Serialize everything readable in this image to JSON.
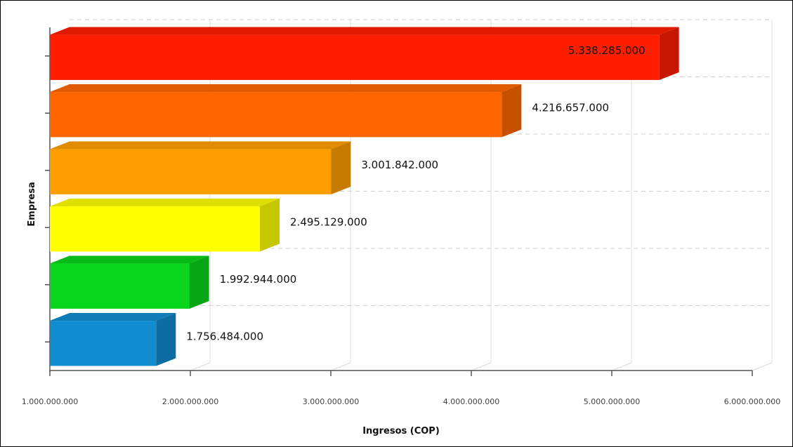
{
  "chart_data": {
    "type": "bar",
    "orientation": "horizontal",
    "style": "3d",
    "xlabel": "Ingresos (COP)",
    "ylabel": "Empresa",
    "xlim": [
      1000000000,
      6000000000
    ],
    "x_tick_labels": [
      "1.000.000.000",
      "2.000.000.000",
      "3.000.000.000",
      "4.000.000.000",
      "5.000.000.000",
      "6.000.000.000"
    ],
    "grid": true,
    "bars": [
      {
        "value": 5338285000,
        "label": "5.338.285.000",
        "color": "#ff1e00"
      },
      {
        "value": 4216657000,
        "label": "4.216.657.000",
        "color": "#ff6600"
      },
      {
        "value": 3001842000,
        "label": "3.001.842.000",
        "color": "#ff9e00"
      },
      {
        "value": 2495129000,
        "label": "2.495.129.000",
        "color": "#ffff00"
      },
      {
        "value": 1992944000,
        "label": "1.992.944.000",
        "color": "#08d51b"
      },
      {
        "value": 1756484000,
        "label": "1.756.484.000",
        "color": "#118cd0"
      }
    ]
  }
}
